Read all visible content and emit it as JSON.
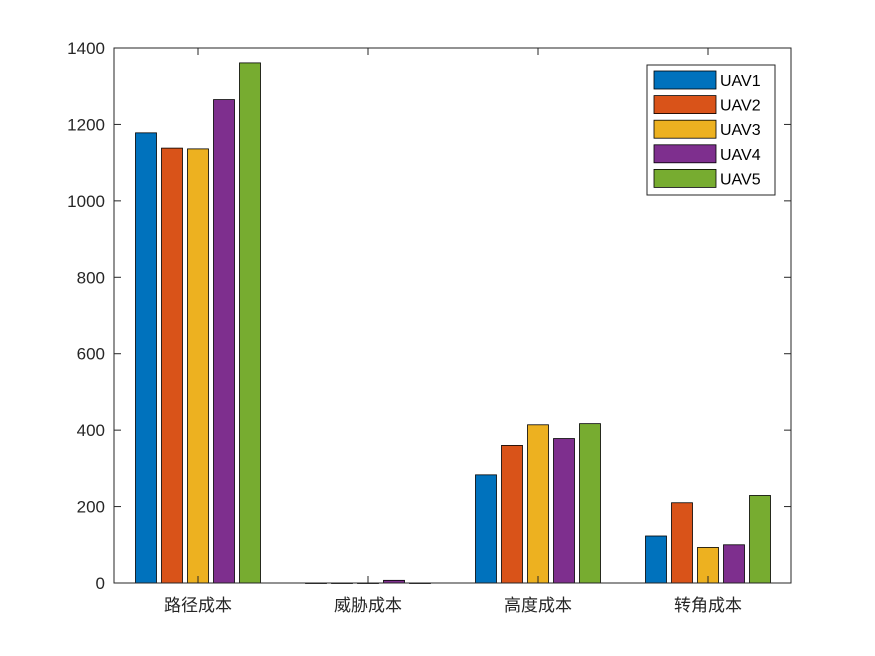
{
  "chart_data": {
    "type": "bar",
    "categories": [
      "路径成本",
      "威胁成本",
      "高度成本",
      "转角成本"
    ],
    "series": [
      {
        "name": "UAV1",
        "color": "#0072BD",
        "values": [
          1178,
          0,
          283,
          123
        ]
      },
      {
        "name": "UAV2",
        "color": "#D95319",
        "values": [
          1138,
          0,
          360,
          210
        ]
      },
      {
        "name": "UAV3",
        "color": "#EDB120",
        "values": [
          1136,
          0,
          414,
          93
        ]
      },
      {
        "name": "UAV4",
        "color": "#7E2F8E",
        "values": [
          1265,
          7,
          378,
          100
        ]
      },
      {
        "name": "UAV5",
        "color": "#77AC30",
        "values": [
          1361,
          0,
          417,
          229
        ]
      }
    ],
    "title": "",
    "xlabel": "",
    "ylabel": "",
    "ylim": [
      0,
      1400
    ],
    "yticks": [
      0,
      200,
      400,
      600,
      800,
      1000,
      1200,
      1400
    ],
    "grid": false,
    "legend_position": "top-right"
  }
}
